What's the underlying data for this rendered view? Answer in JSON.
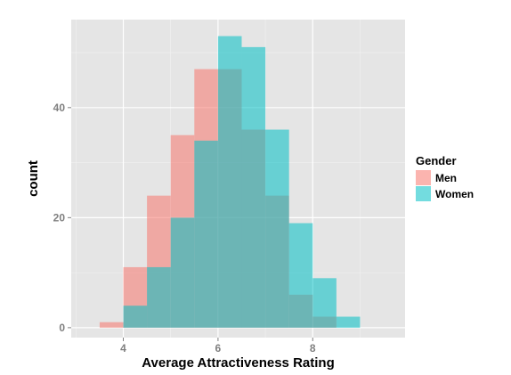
{
  "chart_data": {
    "type": "bar",
    "subtype": "overlaid-histogram",
    "title": "",
    "xlabel": "Average Attractiveness Rating",
    "ylabel": "count",
    "xlim": [
      2.9,
      9.95
    ],
    "ylim": [
      -1.8,
      56
    ],
    "x_ticks": [
      4,
      6,
      8
    ],
    "y_ticks": [
      0,
      20,
      40
    ],
    "grid": true,
    "legend": {
      "title": "Gender",
      "placement": "right"
    },
    "bin_width": 0.5,
    "series": [
      {
        "name": "Men",
        "color": "#F8766D",
        "bins": [
          {
            "x0": 3.5,
            "x1": 4.0,
            "count": 1
          },
          {
            "x0": 4.0,
            "x1": 4.5,
            "count": 11
          },
          {
            "x0": 4.5,
            "x1": 5.0,
            "count": 24
          },
          {
            "x0": 5.0,
            "x1": 5.5,
            "count": 35
          },
          {
            "x0": 5.5,
            "x1": 6.0,
            "count": 47
          },
          {
            "x0": 6.0,
            "x1": 6.5,
            "count": 47
          },
          {
            "x0": 6.5,
            "x1": 7.0,
            "count": 36
          },
          {
            "x0": 7.0,
            "x1": 7.5,
            "count": 24
          },
          {
            "x0": 7.5,
            "x1": 8.0,
            "count": 6
          },
          {
            "x0": 8.0,
            "x1": 8.5,
            "count": 2
          }
        ]
      },
      {
        "name": "Women",
        "color": "#00BFC4",
        "bins": [
          {
            "x0": 4.0,
            "x1": 4.5,
            "count": 4
          },
          {
            "x0": 4.5,
            "x1": 5.0,
            "count": 11
          },
          {
            "x0": 5.0,
            "x1": 5.5,
            "count": 20
          },
          {
            "x0": 5.5,
            "x1": 6.0,
            "count": 34
          },
          {
            "x0": 6.0,
            "x1": 6.5,
            "count": 53
          },
          {
            "x0": 6.5,
            "x1": 7.0,
            "count": 51
          },
          {
            "x0": 7.0,
            "x1": 7.5,
            "count": 36
          },
          {
            "x0": 7.5,
            "x1": 8.0,
            "count": 19
          },
          {
            "x0": 8.0,
            "x1": 8.5,
            "count": 9
          },
          {
            "x0": 8.5,
            "x1": 9.0,
            "count": 2
          }
        ]
      }
    ],
    "colors": {
      "panel_background": "#E5E5E5",
      "grid_major": "#FFFFFF",
      "grid_minor": "#F2F2F2",
      "tick_text": "#7F7F7F"
    },
    "fill_alpha": 0.55
  }
}
